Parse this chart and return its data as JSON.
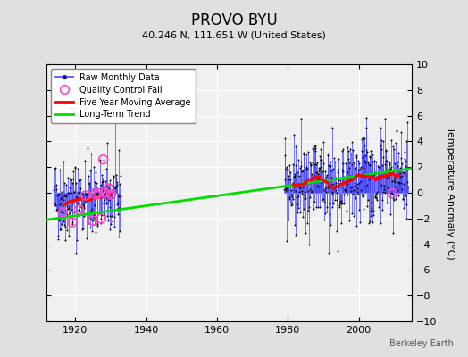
{
  "title": "PROVO BYU",
  "subtitle": "40.246 N, 111.651 W (United States)",
  "ylabel": "Temperature Anomaly (°C)",
  "xlabel": "",
  "watermark": "Berkeley Earth",
  "xlim": [
    1912,
    2015
  ],
  "ylim": [
    -10,
    10
  ],
  "xticks": [
    1920,
    1940,
    1960,
    1980,
    2000
  ],
  "yticks": [
    -10,
    -8,
    -6,
    -4,
    -2,
    0,
    2,
    4,
    6,
    8,
    10
  ],
  "bg_color": "#e0e0e0",
  "plot_bg_color": "#f0f0f0",
  "grid_color": "#ffffff",
  "raw_line_color": "#4444ff",
  "raw_dot_color": "#000000",
  "qc_fail_color": "#ff44cc",
  "moving_avg_color": "#ff0000",
  "trend_color": "#00dd00",
  "trend_line": {
    "x": [
      1912,
      2015
    ],
    "y": [
      -2.1,
      1.9
    ]
  }
}
